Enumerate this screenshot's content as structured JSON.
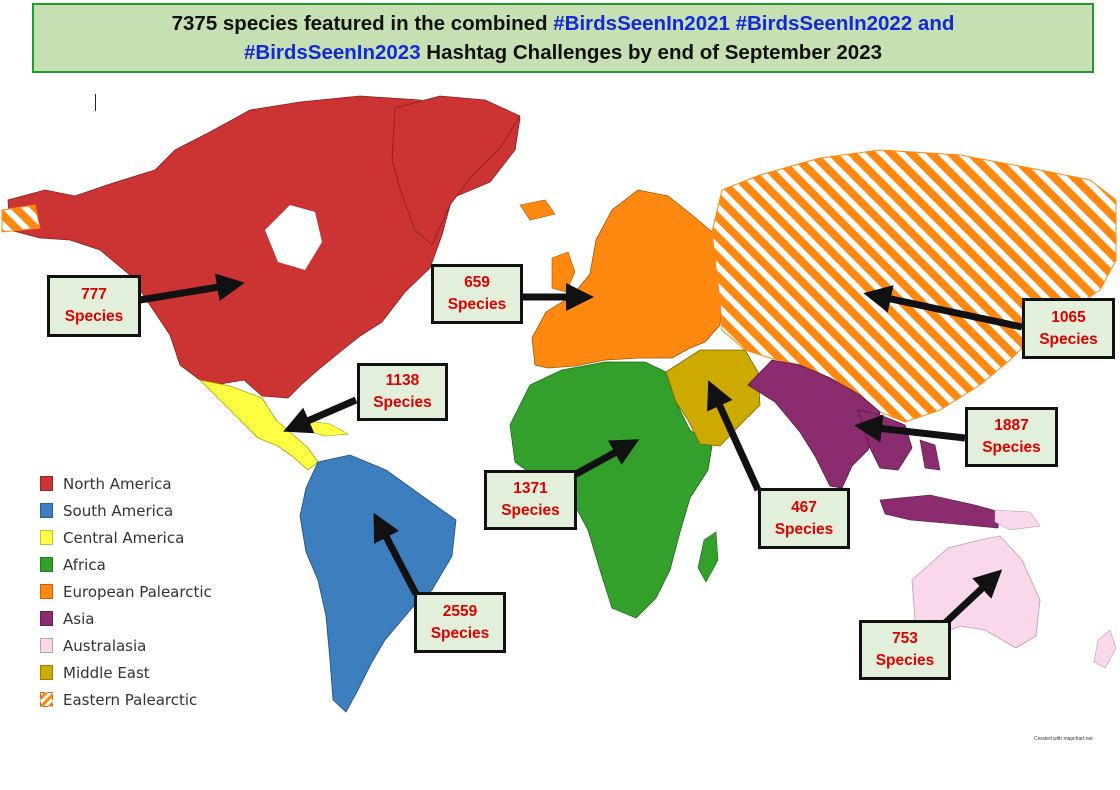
{
  "title": {
    "part1": "7375 species featured in the combined ",
    "tag1": "#BirdsSeenIn2021 #BirdsSeenIn2022 and",
    "tag2": "#BirdsSeenIn2023",
    "part2": " Hashtag Challenges by end of September 2023"
  },
  "colors": {
    "north_america": "#cc3333",
    "south_america": "#3d7ebf",
    "central_america": "#ffff44",
    "africa": "#33a02c",
    "european_palearctic": "#ff8811",
    "asia": "#8a2c6e",
    "australasia": "#f8d8ea",
    "middle_east": "#ccaa00",
    "eastern_palearctic_stripe": "#ff8811"
  },
  "callouts": {
    "north_america": {
      "count": "777",
      "unit": "Species"
    },
    "central_america": {
      "count": "1138",
      "unit": "Species"
    },
    "european_palearctic": {
      "count": "659",
      "unit": "Species"
    },
    "eastern_palearctic": {
      "count": "1065",
      "unit": "Species"
    },
    "africa": {
      "count": "1371",
      "unit": "Species"
    },
    "middle_east": {
      "count": "467",
      "unit": "Species"
    },
    "asia": {
      "count": "1887",
      "unit": "Species"
    },
    "south_america": {
      "count": "2559",
      "unit": "Species"
    },
    "australasia": {
      "count": "753",
      "unit": "Species"
    }
  },
  "legend": [
    {
      "label": "North America",
      "color": "#cc3333"
    },
    {
      "label": "South America",
      "color": "#3d7ebf"
    },
    {
      "label": "Central America",
      "color": "#ffff44"
    },
    {
      "label": "Africa",
      "color": "#33a02c"
    },
    {
      "label": "European Palearctic",
      "color": "#ff8811"
    },
    {
      "label": "Asia",
      "color": "#8a2c6e"
    },
    {
      "label": "Australasia",
      "color": "#f8d8ea"
    },
    {
      "label": "Middle East",
      "color": "#ccaa00"
    },
    {
      "label": "Eastern Palearctic",
      "color": "striped"
    }
  ],
  "credit": "Created with mapchart.net"
}
